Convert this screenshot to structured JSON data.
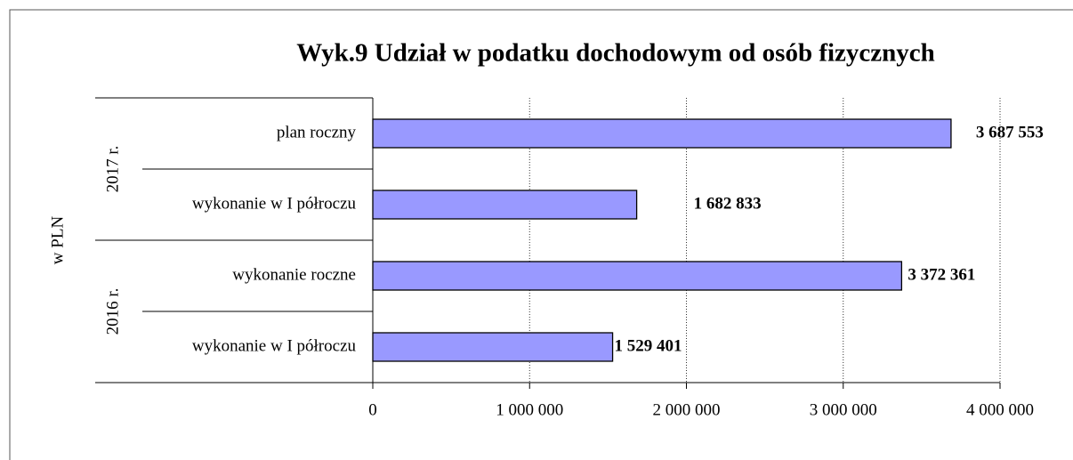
{
  "chart_data": {
    "type": "bar",
    "orientation": "horizontal",
    "title": "Wyk.9 Udział w podatku dochodowym od osób fizycznych",
    "y_axis_label": "w PLN",
    "groups": [
      "2017 r.",
      "2016 r."
    ],
    "categories": [
      "plan roczny",
      "wykonanie w I półroczu",
      "wykonanie roczne",
      "wykonanie w I półroczu"
    ],
    "values": [
      3687553,
      1682833,
      3372361,
      1529401
    ],
    "value_labels": [
      "3 687 553",
      "1 682 833",
      "3 372 361",
      "1 529 401"
    ],
    "color": "#9999ff",
    "xlim": [
      0,
      4000000
    ],
    "xticks": [
      0,
      {
        "value": 1000000,
        "label": "1 000 000"
      },
      {
        "value": 2000000,
        "label": "2 000 000"
      },
      {
        "value": 3000000,
        "label": "3 000 000"
      },
      {
        "value": 4000000,
        "label": "4 000 000"
      }
    ],
    "grid": true
  }
}
